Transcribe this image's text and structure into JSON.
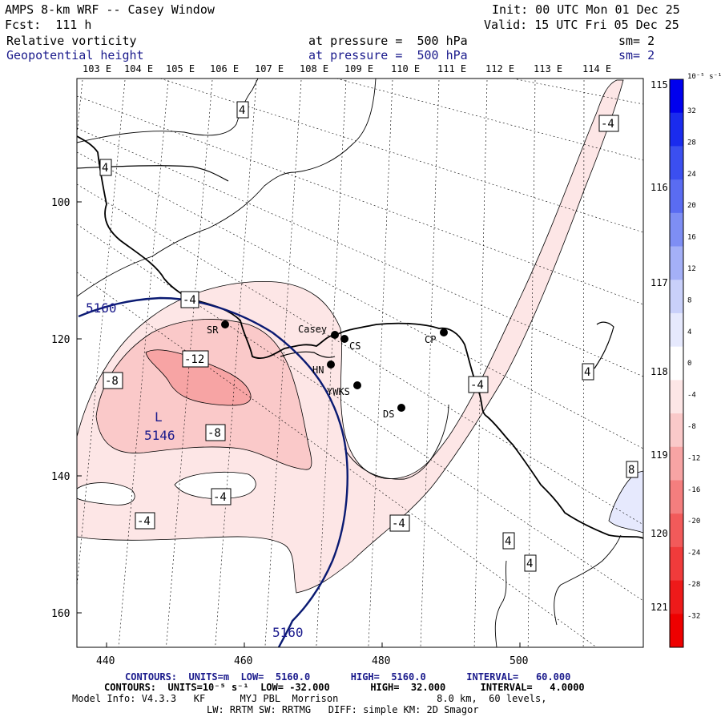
{
  "header": {
    "title": "AMPS 8-km WRF -- Casey Window",
    "forecast": "Fcst:  111 h",
    "init": "Init: 00 UTC Mon 01 Dec 25",
    "valid": "Valid: 15 UTC Fri 05 Dec 25",
    "field1": {
      "name": "Relative vorticity",
      "level": "at pressure =  500 hPa",
      "smooth": "sm= 2"
    },
    "field2": {
      "name": "Geopotential height",
      "level": "at pressure =  500 hPa",
      "smooth": "sm= 2"
    }
  },
  "axes": {
    "top_lon_labels": [
      "103 E",
      "104 E",
      "105 E",
      "106 E",
      "107 E",
      "108 E",
      "109 E",
      "110 E",
      "111 E",
      "112 E",
      "113 E",
      "114 E"
    ],
    "right_lon_labels": [
      "115 E",
      "116 E",
      "117 E",
      "118 E",
      "119 E",
      "120 E",
      "121 E"
    ],
    "left_y_labels": [
      "100",
      "120",
      "140",
      "160"
    ],
    "bottom_x_labels": [
      "440",
      "460",
      "480",
      "500"
    ]
  },
  "stations": [
    {
      "name": "SR"
    },
    {
      "name": "Casey"
    },
    {
      "name": "CS"
    },
    {
      "name": "CP"
    },
    {
      "name": "HN"
    },
    {
      "name": "YWKS"
    },
    {
      "name": "DS"
    }
  ],
  "contour_labels": {
    "height": [
      "5160",
      "5160",
      "L",
      "5146"
    ],
    "vorticity": [
      "4",
      "4",
      "-4",
      "-4",
      "-12",
      "-8",
      "-8",
      "-4",
      "-4",
      "-4",
      "-4",
      "4",
      "8",
      "4",
      "4"
    ]
  },
  "colorbar": {
    "unit": "10⁻⁵ s⁻¹",
    "ticks": [
      "32",
      "28",
      "24",
      "20",
      "16",
      "12",
      "8",
      "4",
      "0",
      "-4",
      "-8",
      "-12",
      "-16",
      "-20",
      "-24",
      "-28",
      "-32"
    ],
    "colors": [
      "#0000ee",
      "#1a2bee",
      "#3b4ff0",
      "#5a6cf2",
      "#7e8ef4",
      "#a4b0f7",
      "#c9d0fa",
      "#e6e9fd",
      "#ffffff",
      "#fde6e6",
      "#fac9c9",
      "#f7a4a4",
      "#f47e7e",
      "#f25a5a",
      "#f03b3b",
      "#ee1a1a",
      "#ee0000"
    ]
  },
  "footer": {
    "line1_label": "CONTOURS:  UNITS=m  LOW=  5160.0       HIGH=  5160.0       INTERVAL=   60.000",
    "line2_label": "CONTOURS:  UNITS=10⁻⁵ s⁻¹  LOW= -32.000       HIGH=  32.000      INTERVAL=   4.0000",
    "line3": "Model Info: V4.3.3   KF      MYJ PBL  Morrison                 8.0 km,  60 levels,",
    "line4": "LW: RRTM SW: RRTMG   DIFF: simple KM: 2D Smagor"
  }
}
